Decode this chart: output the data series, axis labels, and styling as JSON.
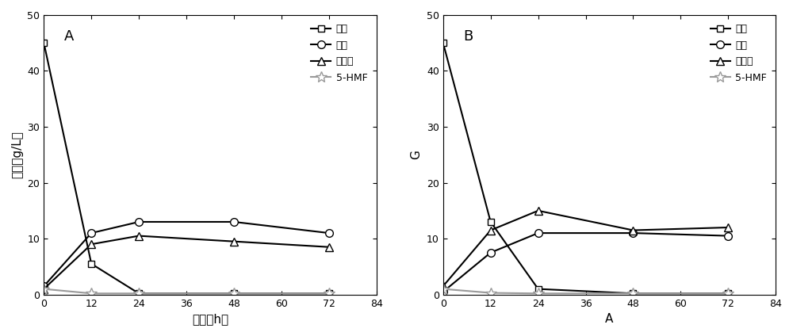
{
  "panel_A": {
    "label": "A",
    "xlabel": "时间（h）",
    "ylabel": "浓度（g/L）",
    "xlim": [
      0,
      84
    ],
    "ylim": [
      0,
      50
    ],
    "xticks": [
      0,
      12,
      24,
      36,
      48,
      60,
      72,
      84
    ],
    "yticks": [
      0,
      10,
      20,
      30,
      40,
      50
    ],
    "series": {
      "木糖": {
        "x": [
          0,
          12,
          24,
          48,
          72
        ],
        "y": [
          45,
          5.5,
          0.2,
          0.2,
          0.2
        ],
        "marker": "s",
        "color": "#000000",
        "linestyle": "-"
      },
      "乙醇": {
        "x": [
          0,
          12,
          24,
          48,
          72
        ],
        "y": [
          1.5,
          11,
          13,
          13,
          11
        ],
        "marker": "o",
        "color": "#000000",
        "linestyle": "-"
      },
      "木糖醇": {
        "x": [
          0,
          12,
          24,
          48,
          72
        ],
        "y": [
          1.0,
          9.0,
          10.5,
          9.5,
          8.5
        ],
        "marker": "^",
        "color": "#000000",
        "linestyle": "-"
      },
      "5-HMF": {
        "x": [
          0,
          12,
          24,
          48,
          72
        ],
        "y": [
          1.0,
          0.2,
          0.2,
          0.2,
          0.2
        ],
        "marker": "*",
        "color": "#999999",
        "linestyle": "-"
      }
    }
  },
  "panel_B": {
    "label": "B",
    "xlabel": "A",
    "ylabel": "G",
    "xlim": [
      0,
      84
    ],
    "ylim": [
      0,
      50
    ],
    "xticks": [
      0,
      12,
      24,
      36,
      48,
      60,
      72,
      84
    ],
    "yticks": [
      0,
      10,
      20,
      30,
      40,
      50
    ],
    "series": {
      "木糖": {
        "x": [
          0,
          12,
          24,
          48,
          72
        ],
        "y": [
          45,
          13,
          1.0,
          0.2,
          0.2
        ],
        "marker": "s",
        "color": "#000000",
        "linestyle": "-"
      },
      "乙醇": {
        "x": [
          0,
          12,
          24,
          48,
          72
        ],
        "y": [
          0.5,
          7.5,
          11,
          11,
          10.5
        ],
        "marker": "o",
        "color": "#000000",
        "linestyle": "-"
      },
      "木糖醇": {
        "x": [
          0,
          12,
          24,
          48,
          72
        ],
        "y": [
          1.5,
          11.5,
          15,
          11.5,
          12
        ],
        "marker": "^",
        "color": "#000000",
        "linestyle": "-"
      },
      "5-HMF": {
        "x": [
          0,
          12,
          24,
          48,
          72
        ],
        "y": [
          1.0,
          0.3,
          0.2,
          0.2,
          0.2
        ],
        "marker": "*",
        "color": "#999999",
        "linestyle": "-"
      }
    }
  },
  "legend_labels": [
    "木糖",
    "乙醇",
    "木糖醇",
    "5-HMF"
  ],
  "marker_sizes": {
    "s": 6,
    "o": 7,
    "^": 7,
    "*": 10
  },
  "linewidth": 1.5,
  "background_color": "#ffffff"
}
